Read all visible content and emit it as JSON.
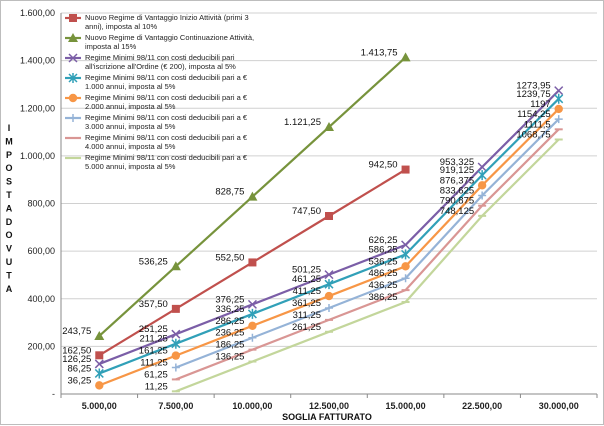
{
  "chart_data": {
    "type": "line",
    "xlabel": "SOGLIA FATTURATO",
    "ylabel": "IMPOSTA DOVUTA",
    "categories": [
      "5.000,00",
      "7.500,00",
      "10.000,00",
      "12.500,00",
      "15.000,00",
      "22.500,00",
      "30.000,00"
    ],
    "ylim": [
      0,
      1600
    ],
    "y_ticks": [
      "-",
      "200,00",
      "400,00",
      "600,00",
      "800,00",
      "1.000,00",
      "1.200,00",
      "1.400,00",
      "1.600,00"
    ],
    "grid": true,
    "legend_position": "top-left",
    "series": [
      {
        "name": "Nuovo Regime di Vantaggio Inizio Attività (primi 3 anni), imposta al 10%",
        "legend_lines": [
          "Nuovo Regime di Vantaggio Inizio Attività (primi 3",
          "anni), imposta al 10%"
        ],
        "color": "#c0504d",
        "marker": "square",
        "values": [
          162.5,
          357.5,
          552.5,
          747.5,
          942.5,
          null,
          null
        ],
        "labels": [
          "162,50",
          "357,50",
          "552,50",
          "747,50",
          "942,50",
          "",
          ""
        ]
      },
      {
        "name": "Nuovo Regime di Vantaggio Continuazione Attività, imposta al 15%",
        "legend_lines": [
          "Nuovo Regime di Vantaggio Continuazione Attività,",
          "imposta al 15%"
        ],
        "color": "#77933c",
        "marker": "triangle",
        "values": [
          243.75,
          536.25,
          828.75,
          1121.25,
          1413.75,
          null,
          null
        ],
        "labels": [
          "243,75",
          "536,25",
          "828,75",
          "1.121,25",
          "1.413,75",
          "",
          ""
        ]
      },
      {
        "name": "Regime Minimi 98/11 con costi deducibili pari all'iscrizione all'Ordine (€ 200), imposta al 5%",
        "legend_lines": [
          "Regime Minimi 98/11 con costi deducibili pari",
          "all'iscrizione all'Ordine (€ 200), imposta al 5%"
        ],
        "color": "#7b5ea7",
        "marker": "x",
        "values": [
          126.25,
          251.25,
          376.25,
          501.25,
          626.25,
          953.325,
          1273.95
        ],
        "labels": [
          "126,25",
          "251,25",
          "376,25",
          "501,25",
          "626,25",
          "953,325",
          "1273,95"
        ]
      },
      {
        "name": "Regime Minimi 98/11 con costi deducibili pari a € 1.000 annui, imposta al 5%",
        "legend_lines": [
          "Regime Minimi 98/11 con costi deducibili pari a €",
          "1.000 annui, imposta al 5%"
        ],
        "color": "#31a0b8",
        "marker": "asterisk",
        "values": [
          86.25,
          211.25,
          336.25,
          461.25,
          586.25,
          919.125,
          1239.75
        ],
        "labels": [
          "86,25",
          "211,25",
          "336,25",
          "461,25",
          "586,25",
          "919,125",
          "1239,75"
        ]
      },
      {
        "name": "Regime Minimi 98/11 con costi deducibili pari a € 2.000 annui, imposta al 5%",
        "legend_lines": [
          "Regime Minimi 98/11 con costi deducibili pari a €",
          "2.000 annui, imposta al 5%"
        ],
        "color": "#f79646",
        "marker": "circle",
        "values": [
          36.25,
          161.25,
          286.25,
          411.25,
          536.25,
          876.375,
          1197
        ],
        "labels": [
          "36,25",
          "161,25",
          "286,25",
          "411,25",
          "536,25",
          "876,375",
          "1197"
        ]
      },
      {
        "name": "Regime Minimi 98/11 con costi deducibili pari a € 3.000 annui, imposta al 5%",
        "legend_lines": [
          "Regime Minimi 98/11 con costi deducibili pari a €",
          "3.000 annui, imposta al 5%"
        ],
        "color": "#95b3d7",
        "marker": "plus",
        "values": [
          null,
          111.25,
          236.25,
          361.25,
          486.25,
          833.625,
          1154.25
        ],
        "labels": [
          "",
          "111,25",
          "236,25",
          "361,25",
          "486,25",
          "833,625",
          "1154,25"
        ]
      },
      {
        "name": "Regime Minimi 98/11 con costi deducibili pari a € 4.000 annui, imposta al 5%",
        "legend_lines": [
          "Regime Minimi 98/11 con costi deducibili pari a €",
          "4.000 annui, imposta al 5%"
        ],
        "color": "#d99694",
        "marker": "dash",
        "values": [
          null,
          61.25,
          186.25,
          311.25,
          436.25,
          790.875,
          1111.5
        ],
        "labels": [
          "",
          "61,25",
          "186,25",
          "311,25",
          "436,25",
          "790,875",
          "1111,5"
        ]
      },
      {
        "name": "Regime Minimi 98/11 con costi deducibili pari a € 5.000 annui, imposta al 5%",
        "legend_lines": [
          "Regime Minimi 98/11 con costi deducibili pari a €",
          "5.000 annui, imposta al 5%"
        ],
        "color": "#c3d69b",
        "marker": "dash",
        "values": [
          null,
          11.25,
          136.25,
          261.25,
          386.25,
          748.125,
          1068.75
        ],
        "labels": [
          "",
          "11,25",
          "136,25",
          "261,25",
          "386,25",
          "748,125",
          "1068,75"
        ]
      }
    ]
  }
}
